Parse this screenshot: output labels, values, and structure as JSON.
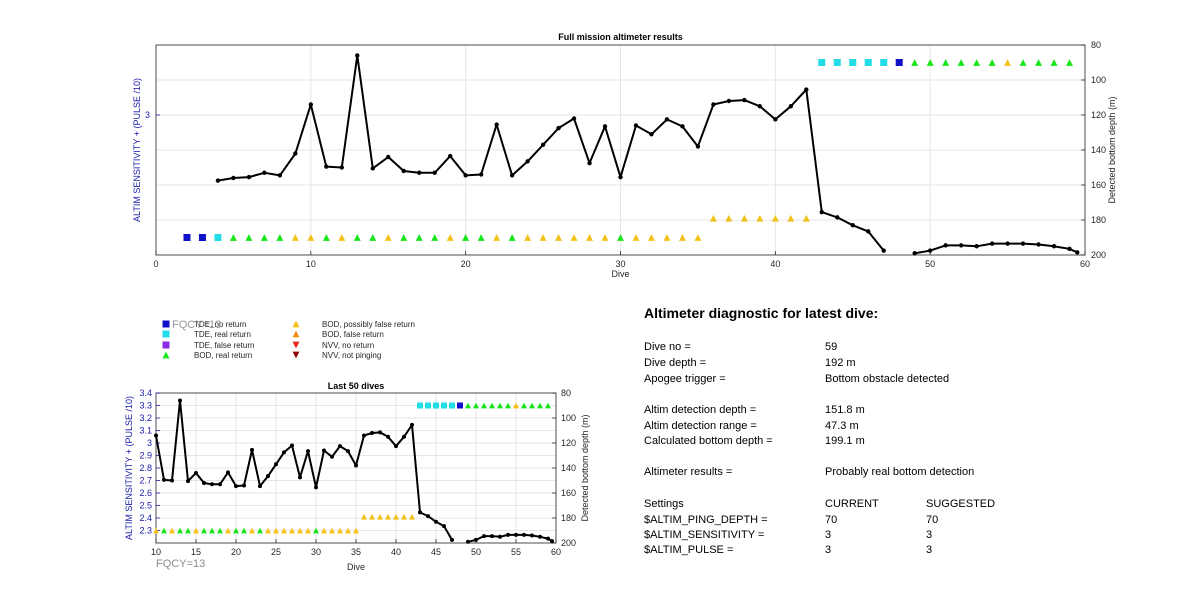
{
  "chart_data": [
    {
      "type": "line",
      "title": "Full mission altimeter results",
      "xlabel": "Dive",
      "ylabel_left": "ALTIM SENSITIVITY + (PULSE /10)",
      "ylabel_right": "Detected bottom depth (m)",
      "xlim": [
        0,
        60
      ],
      "ylim_right": [
        80,
        200
      ],
      "y_right_reversed": true,
      "x_ticks": [
        "0",
        "10",
        "20",
        "30",
        "40",
        "50",
        "60"
      ],
      "y_right_ticks": [
        "80",
        "100",
        "120",
        "140",
        "160",
        "180",
        "200"
      ],
      "y_left_ticks": [
        "3"
      ],
      "grid": true,
      "series": [
        {
          "kind": "bottom_depth_line",
          "segments": [
            [
              [
                4,
                157.5
              ],
              [
                5,
                156
              ],
              [
                6,
                155.5
              ],
              [
                7,
                153
              ],
              [
                8,
                154.5
              ],
              [
                9,
                142
              ],
              [
                10,
                114
              ],
              [
                11,
                149.5
              ],
              [
                12,
                150
              ],
              [
                13,
                86
              ],
              [
                14,
                150.5
              ],
              [
                15,
                144
              ],
              [
                16,
                152
              ],
              [
                17,
                153
              ],
              [
                18,
                153
              ],
              [
                19,
                143.5
              ],
              [
                20,
                154.5
              ],
              [
                21,
                154
              ],
              [
                22,
                125.5
              ],
              [
                23,
                154.5
              ],
              [
                24,
                146.5
              ],
              [
                25,
                137
              ],
              [
                26,
                127.5
              ],
              [
                27,
                122
              ],
              [
                28,
                147.5
              ],
              [
                29,
                126.5
              ],
              [
                30,
                155.5
              ],
              [
                31,
                126
              ],
              [
                32,
                131
              ],
              [
                33,
                122.5
              ],
              [
                34,
                126.5
              ],
              [
                35,
                138
              ],
              [
                36,
                114
              ],
              [
                37,
                112
              ],
              [
                38,
                111.5
              ],
              [
                39,
                115
              ],
              [
                40,
                122.5
              ],
              [
                41,
                115
              ],
              [
                42,
                105.5
              ],
              [
                43,
                175.5
              ],
              [
                44,
                178.5
              ],
              [
                45,
                183
              ],
              [
                46,
                186.5
              ],
              [
                47,
                197.5
              ]
            ],
            [
              [
                49,
                199
              ],
              [
                50,
                197.5
              ],
              [
                51,
                194.5
              ],
              [
                52,
                194.5
              ],
              [
                53,
                195
              ],
              [
                54,
                193.5
              ],
              [
                55,
                193.5
              ],
              [
                56,
                193.5
              ],
              [
                57,
                194
              ],
              [
                58,
                195
              ],
              [
                59,
                196.5
              ],
              [
                59.5,
                198.5
              ]
            ]
          ]
        },
        {
          "kind": "status_markers",
          "points": [
            {
              "dive": 2,
              "depth": 190,
              "status": "TDE, no return"
            },
            {
              "dive": 3,
              "depth": 190,
              "status": "TDE, no return"
            },
            {
              "dive": 4,
              "depth": 190,
              "status": "TDE, real return"
            },
            {
              "dive": 5,
              "depth": 190,
              "status": "BOD, real return"
            },
            {
              "dive": 6,
              "depth": 190,
              "status": "BOD, real return"
            },
            {
              "dive": 7,
              "depth": 190,
              "status": "BOD, real return"
            },
            {
              "dive": 8,
              "depth": 190,
              "status": "BOD, real return"
            },
            {
              "dive": 9,
              "depth": 190,
              "status": "BOD, possibly false return"
            },
            {
              "dive": 10,
              "depth": 190,
              "status": "BOD, possibly false return"
            },
            {
              "dive": 11,
              "depth": 190,
              "status": "BOD, real return"
            },
            {
              "dive": 12,
              "depth": 190,
              "status": "BOD, possibly false return"
            },
            {
              "dive": 13,
              "depth": 190,
              "status": "BOD, real return"
            },
            {
              "dive": 14,
              "depth": 190,
              "status": "BOD, real return"
            },
            {
              "dive": 15,
              "depth": 190,
              "status": "BOD, possibly false return"
            },
            {
              "dive": 16,
              "depth": 190,
              "status": "BOD, real return"
            },
            {
              "dive": 17,
              "depth": 190,
              "status": "BOD, real return"
            },
            {
              "dive": 18,
              "depth": 190,
              "status": "BOD, real return"
            },
            {
              "dive": 19,
              "depth": 190,
              "status": "BOD, possibly false return"
            },
            {
              "dive": 20,
              "depth": 190,
              "status": "BOD, real return"
            },
            {
              "dive": 21,
              "depth": 190,
              "status": "BOD, real return"
            },
            {
              "dive": 22,
              "depth": 190,
              "status": "BOD, possibly false return"
            },
            {
              "dive": 23,
              "depth": 190,
              "status": "BOD, real return"
            },
            {
              "dive": 24,
              "depth": 190,
              "status": "BOD, possibly false return"
            },
            {
              "dive": 25,
              "depth": 190,
              "status": "BOD, possibly false return"
            },
            {
              "dive": 26,
              "depth": 190,
              "status": "BOD, possibly false return"
            },
            {
              "dive": 27,
              "depth": 190,
              "status": "BOD, possibly false return"
            },
            {
              "dive": 28,
              "depth": 190,
              "status": "BOD, possibly false return"
            },
            {
              "dive": 29,
              "depth": 190,
              "status": "BOD, possibly false return"
            },
            {
              "dive": 30,
              "depth": 190,
              "status": "BOD, real return"
            },
            {
              "dive": 31,
              "depth": 190,
              "status": "BOD, possibly false return"
            },
            {
              "dive": 32,
              "depth": 190,
              "status": "BOD, possibly false return"
            },
            {
              "dive": 33,
              "depth": 190,
              "status": "BOD, possibly false return"
            },
            {
              "dive": 34,
              "depth": 190,
              "status": "BOD, possibly false return"
            },
            {
              "dive": 35,
              "depth": 190,
              "status": "BOD, possibly false return"
            },
            {
              "dive": 36,
              "depth": 179,
              "status": "BOD, possibly false return"
            },
            {
              "dive": 37,
              "depth": 179,
              "status": "BOD, possibly false return"
            },
            {
              "dive": 38,
              "depth": 179,
              "status": "BOD, possibly false return"
            },
            {
              "dive": 39,
              "depth": 179,
              "status": "BOD, possibly false return"
            },
            {
              "dive": 40,
              "depth": 179,
              "status": "BOD, possibly false return"
            },
            {
              "dive": 41,
              "depth": 179,
              "status": "BOD, possibly false return"
            },
            {
              "dive": 42,
              "depth": 179,
              "status": "BOD, possibly false return"
            },
            {
              "dive": 43,
              "depth": 90,
              "status": "TDE, real return"
            },
            {
              "dive": 44,
              "depth": 90,
              "status": "TDE, real return"
            },
            {
              "dive": 45,
              "depth": 90,
              "status": "TDE, real return"
            },
            {
              "dive": 46,
              "depth": 90,
              "status": "TDE, real return"
            },
            {
              "dive": 47,
              "depth": 90,
              "status": "TDE, real return"
            },
            {
              "dive": 48,
              "depth": 90,
              "status": "TDE, no return"
            },
            {
              "dive": 49,
              "depth": 90,
              "status": "BOD, real return"
            },
            {
              "dive": 50,
              "depth": 90,
              "status": "BOD, real return"
            },
            {
              "dive": 51,
              "depth": 90,
              "status": "BOD, real return"
            },
            {
              "dive": 52,
              "depth": 90,
              "status": "BOD, real return"
            },
            {
              "dive": 53,
              "depth": 90,
              "status": "BOD, real return"
            },
            {
              "dive": 54,
              "depth": 90,
              "status": "BOD, real return"
            },
            {
              "dive": 55,
              "depth": 90,
              "status": "BOD, possibly false return"
            },
            {
              "dive": 56,
              "depth": 90,
              "status": "BOD, real return"
            },
            {
              "dive": 57,
              "depth": 90,
              "status": "BOD, real return"
            },
            {
              "dive": 58,
              "depth": 90,
              "status": "BOD, real return"
            },
            {
              "dive": 59,
              "depth": 90,
              "status": "BOD, real return"
            }
          ]
        }
      ]
    },
    {
      "type": "line",
      "title": "Last 50 dives",
      "xlabel": "Dive",
      "ylabel_left": "ALTIM SENSITIVITY + (PULSE /10)",
      "ylabel_right": "Detected bottom depth (m)",
      "xlim": [
        10,
        60
      ],
      "ylim_left": [
        2.2,
        3.4
      ],
      "ylim_right": [
        80,
        200
      ],
      "y_right_reversed": true,
      "x_ticks": [
        "10",
        "15",
        "20",
        "25",
        "30",
        "35",
        "40",
        "45",
        "50",
        "55",
        "60"
      ],
      "y_left_ticks": [
        "2.3",
        "2.4",
        "2.5",
        "2.6",
        "2.7",
        "2.8",
        "2.9",
        "3",
        "3.1",
        "3.2",
        "3.3",
        "3.4"
      ],
      "y_right_ticks": [
        "80",
        "100",
        "120",
        "140",
        "160",
        "180",
        "200"
      ],
      "grid": true,
      "annotation": "FQCY=13"
    }
  ],
  "legend": {
    "items": [
      {
        "label": "TDE, no return",
        "shape": "square",
        "color": "#1010c8"
      },
      {
        "label": "TDE, real return",
        "shape": "square",
        "color": "#22dde6"
      },
      {
        "label": "TDE, false return",
        "shape": "square",
        "color": "#8a2be2"
      },
      {
        "label": "BOD, real return",
        "shape": "triangle-up",
        "color": "#19e619"
      },
      {
        "label": "BOD, possibly false return",
        "shape": "triangle-up",
        "color": "#f2c21b"
      },
      {
        "label": "BOD, false return",
        "shape": "triangle-up",
        "color": "#f28c1b"
      },
      {
        "label": "NVV, no return",
        "shape": "triangle-down",
        "color": "#e02a1a"
      },
      {
        "label": "NVV, not pinging",
        "shape": "triangle-down",
        "color": "#8b0a0a"
      }
    ],
    "overlay_text": "FQCY=13"
  },
  "diagnostic": {
    "title": "Altimeter diagnostic for latest dive:",
    "dive_no_label": "Dive no =",
    "dive_no": "59",
    "dive_depth_label": "Dive depth =",
    "dive_depth": "192 m",
    "apogee_label": "Apogee trigger =",
    "apogee": "Bottom obstacle detected",
    "alt_depth_label": "Altim detection depth =",
    "alt_depth": "151.8 m",
    "alt_range_label": "Altim detection range =",
    "alt_range": "47.3 m",
    "calc_bottom_label": "Calculated bottom depth =",
    "calc_bottom": "199.1 m",
    "results_label": "Altimeter results =",
    "results": "Probably real bottom detection",
    "settings_label": "Settings",
    "current_label": "CURRENT",
    "suggested_label": "SUGGESTED",
    "settings": [
      {
        "name": "$ALTIM_PING_DEPTH =",
        "current": "70",
        "suggested": "70"
      },
      {
        "name": "$ALTIM_SENSITIVITY =",
        "current": "3",
        "suggested": "3"
      },
      {
        "name": "$ALTIM_PULSE =",
        "current": "3",
        "suggested": "3"
      }
    ]
  },
  "colors": {
    "line": "#000000",
    "left_axis": "#1a1aaa",
    "grid": "#e6e6e6",
    "axis": "#262626",
    "status": {
      "TDE, no return": "#1010c8",
      "TDE, real return": "#22dde6",
      "TDE, false return": "#8a2be2",
      "BOD, real return": "#19e619",
      "BOD, possibly false return": "#f2c21b",
      "BOD, false return": "#f28c1b",
      "NVV, no return": "#e02a1a",
      "NVV, not pinging": "#8b0a0a"
    }
  }
}
